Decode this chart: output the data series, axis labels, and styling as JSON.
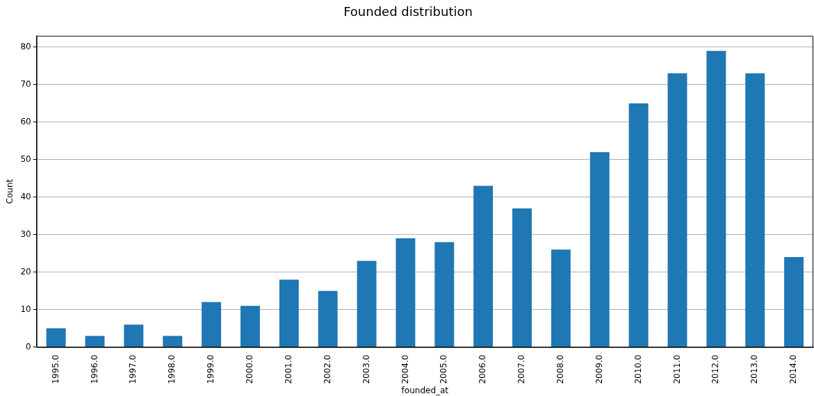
{
  "chart_data": {
    "type": "bar",
    "title": "Founded distribution",
    "xlabel": "founded_at",
    "ylabel": "Count",
    "categories": [
      "1995.0",
      "1996.0",
      "1997.0",
      "1998.0",
      "1999.0",
      "2000.0",
      "2001.0",
      "2002.0",
      "2003.0",
      "2004.0",
      "2005.0",
      "2006.0",
      "2007.0",
      "2008.0",
      "2009.0",
      "2010.0",
      "2011.0",
      "2012.0",
      "2013.0",
      "2014.0"
    ],
    "values": [
      5,
      3,
      6,
      3,
      12,
      11,
      18,
      15,
      23,
      29,
      28,
      43,
      37,
      26,
      52,
      65,
      73,
      79,
      73,
      24
    ],
    "color": "#1f77b4",
    "ylim": [
      0,
      83
    ],
    "yticks": [
      0,
      10,
      20,
      30,
      40,
      50,
      60,
      70,
      80
    ],
    "grid": "y",
    "legend": false
  }
}
